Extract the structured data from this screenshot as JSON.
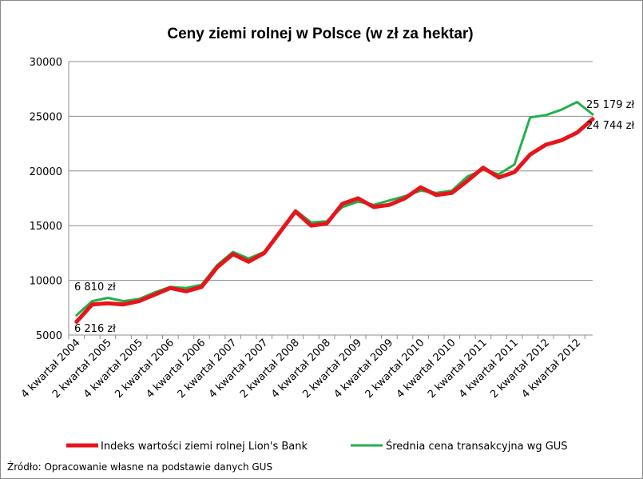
{
  "chart_data": {
    "type": "line",
    "title": "Ceny ziemi rolnej w Polsce (w zł za hektar)",
    "xlabel": "",
    "ylabel": "",
    "ylim": [
      5000,
      30000
    ],
    "yticks": [
      5000,
      10000,
      15000,
      20000,
      25000,
      30000
    ],
    "grid": true,
    "legend_position": "bottom",
    "tick_labels": [
      "4 kwartał 2004",
      "2 kwartał 2005",
      "4 kwartał 2005",
      "2 kwartał 2006",
      "4 kwartał 2006",
      "2 kwartał 2007",
      "4 kwartał 2007",
      "2 kwartał 2008",
      "4 kwartał 2008",
      "2 kwartał 2009",
      "4 kwartał 2009",
      "2 kwartał 2010",
      "4 kwartał 2010",
      "2 kwartał 2011",
      "4 kwartał 2011",
      "2 kwartał 2012",
      "4 kwartał 2012"
    ],
    "series": [
      {
        "name": "Indeks wartości ziemi rolnej Lion's Bank",
        "color": "#e8141b",
        "values": [
          6216,
          7800,
          7900,
          7800,
          8100,
          8700,
          9300,
          9000,
          9400,
          11200,
          12400,
          11700,
          12500,
          14400,
          16300,
          15000,
          15200,
          17000,
          17500,
          16700,
          16900,
          17500,
          18500,
          17800,
          18000,
          19100,
          20300,
          19400,
          19900,
          21500,
          22400,
          22800,
          23500,
          24744
        ]
      },
      {
        "name": "Średnia cena transakcyjna wg GUS",
        "color": "#22b04b",
        "values": [
          6810,
          8100,
          8400,
          8100,
          8300,
          8900,
          9400,
          9300,
          9600,
          11400,
          12600,
          12000,
          12600,
          14400,
          16400,
          15300,
          15400,
          16700,
          17200,
          16900,
          17300,
          17700,
          18200,
          18000,
          18200,
          19500,
          20100,
          19700,
          20600,
          24900,
          25100,
          25600,
          26300,
          25179
        ]
      }
    ],
    "annotations": {
      "gus_start": "6 810 zł",
      "lion_start": "6 216 zł",
      "gus_end": "25 179 zł",
      "lion_end": "24 744 zł"
    },
    "source_note": "Źródło: Opracowanie własne na podstawie danych GUS"
  }
}
